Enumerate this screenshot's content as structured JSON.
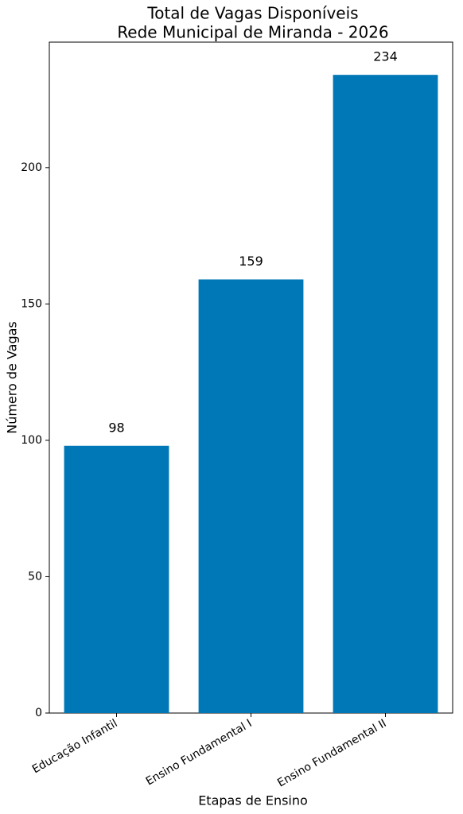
{
  "chart_data": {
    "type": "bar",
    "title": "Total de Vagas Disponíveis",
    "subtitle": "Rede Municipal de Miranda - 2026",
    "x_label": "Etapas de Ensino",
    "y_label": "Número de Vagas",
    "categories": [
      "Educação Infantil",
      "Ensino Fundamental I",
      "Ensino Fundamental II"
    ],
    "values": [
      98,
      159,
      234
    ],
    "color": "#0077b6",
    "ylim": [
      0,
      246
    ],
    "yticks": [
      0,
      50,
      100,
      150,
      200
    ],
    "grid": false
  }
}
